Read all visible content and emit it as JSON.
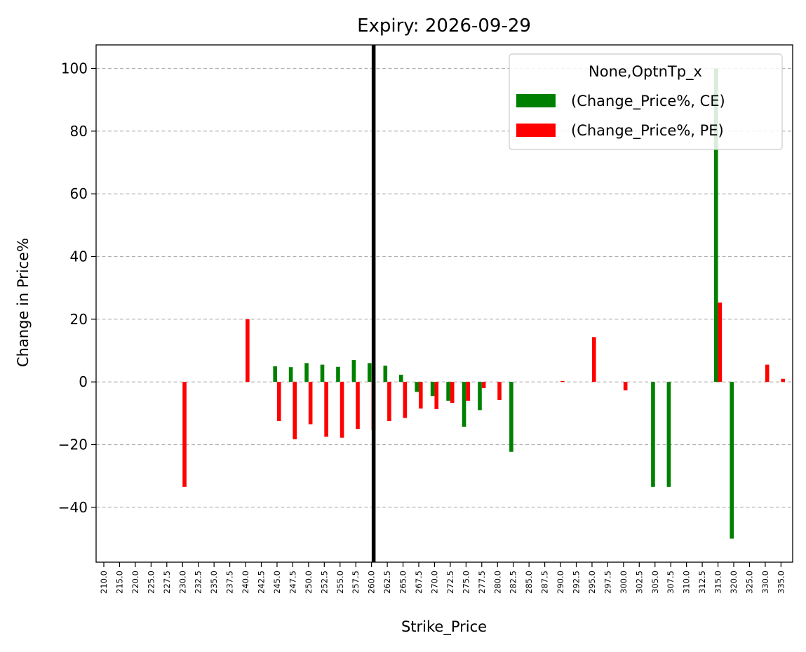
{
  "chart_data": {
    "type": "bar",
    "title": "Expiry: 2026-09-29",
    "xlabel": "Strike_Price",
    "ylabel": "Change in Price%",
    "categories": [
      "210.0",
      "215.0",
      "220.0",
      "225.0",
      "227.5",
      "230.0",
      "232.5",
      "235.0",
      "237.5",
      "240.0",
      "242.5",
      "245.0",
      "247.5",
      "250.0",
      "252.5",
      "255.0",
      "257.5",
      "260.0",
      "262.5",
      "265.0",
      "267.5",
      "270.0",
      "272.5",
      "275.0",
      "277.5",
      "280.0",
      "282.5",
      "285.0",
      "287.5",
      "290.0",
      "292.5",
      "295.0",
      "297.5",
      "300.0",
      "302.5",
      "305.0",
      "307.5",
      "310.0",
      "312.5",
      "315.0",
      "320.0",
      "325.0",
      "330.0",
      "335.0"
    ],
    "series": [
      {
        "name": "(Change_Price%, CE)",
        "color": "#008000",
        "values": [
          0,
          0,
          0,
          0,
          0,
          0,
          0,
          0,
          0,
          0,
          0,
          5,
          4.7,
          6,
          5.5,
          4.8,
          7,
          6,
          5.2,
          2.3,
          -3.2,
          -4.5,
          -6,
          -14.3,
          -9,
          0,
          -22.3,
          0,
          0,
          0,
          0,
          0,
          0,
          0,
          0,
          -33.5,
          -33.5,
          0,
          0,
          100,
          -50,
          0,
          0,
          0
        ]
      },
      {
        "name": "(Change_Price%, PE)",
        "color": "#ff0000",
        "values": [
          0,
          0,
          0,
          0,
          0,
          -33.5,
          0,
          0,
          0,
          20,
          0,
          -12.5,
          -18.3,
          -13.5,
          -17.5,
          -17.8,
          -15,
          -15.5,
          -12.5,
          -11.5,
          -8.5,
          -8.7,
          -6.7,
          -6,
          -2,
          -5.8,
          0,
          0,
          0,
          0.3,
          0,
          14.3,
          0,
          -2.7,
          0,
          0,
          0,
          0,
          0,
          25.3,
          0,
          0,
          5.5,
          1
        ]
      }
    ],
    "ylim": [
      -57.5,
      107.5
    ],
    "yticks": [
      "100",
      "80",
      "60",
      "40",
      "20",
      "0",
      "−20",
      "−40"
    ],
    "ytick_values": [
      100,
      80,
      60,
      40,
      20,
      0,
      -20,
      -40
    ],
    "grid": "horizontal dashed",
    "legend": {
      "title": "None,OptnTp_x",
      "placement": "top-right"
    },
    "reference_line": {
      "category": "260.0",
      "color": "#000000"
    }
  }
}
